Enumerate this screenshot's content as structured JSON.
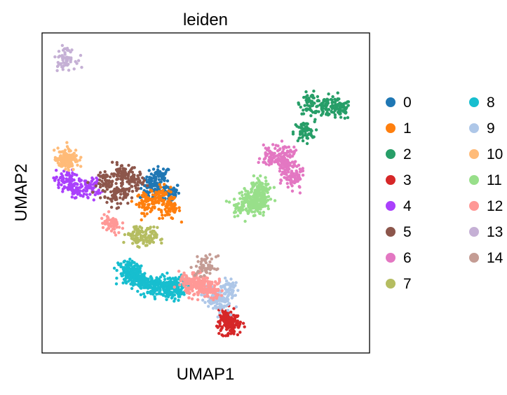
{
  "chart_data": {
    "type": "scatter",
    "title": "leiden",
    "xlabel": "UMAP1",
    "ylabel": "UMAP2",
    "xlim": [
      0,
      100
    ],
    "ylim": [
      0,
      100
    ],
    "grid": false,
    "ticks": false,
    "legend": {
      "title": "",
      "placement": "right",
      "columns": 2
    },
    "series": [
      {
        "name": "0",
        "color": "#1f77b4",
        "centers": [
          [
            36,
            55
          ],
          [
            33,
            51
          ],
          [
            39,
            50
          ]
        ]
      },
      {
        "name": "1",
        "color": "#ff7f0e",
        "centers": [
          [
            36,
            49
          ],
          [
            32,
            47
          ],
          [
            39,
            45
          ]
        ]
      },
      {
        "name": "2",
        "color": "#279e68",
        "centers": [
          [
            91,
            76
          ],
          [
            87,
            77
          ],
          [
            82,
            78
          ],
          [
            80,
            69
          ]
        ]
      },
      {
        "name": "3",
        "color": "#d62728",
        "centers": [
          [
            57,
            10
          ],
          [
            58,
            8
          ],
          [
            56,
            11
          ]
        ]
      },
      {
        "name": "4",
        "color": "#aa40fc",
        "centers": [
          [
            7,
            54
          ],
          [
            10,
            51
          ],
          [
            15,
            52
          ]
        ]
      },
      {
        "name": "5",
        "color": "#8c564b",
        "centers": [
          [
            24,
            56
          ],
          [
            20,
            53
          ],
          [
            28,
            54
          ],
          [
            23,
            49
          ]
        ]
      },
      {
        "name": "6",
        "color": "#e377c2",
        "centers": [
          [
            75,
            58
          ],
          [
            77,
            54
          ],
          [
            70,
            61
          ],
          [
            74,
            62
          ]
        ]
      },
      {
        "name": "7",
        "color": "#b5bd61",
        "centers": [
          [
            29,
            37
          ],
          [
            32,
            36
          ]
        ]
      },
      {
        "name": "8",
        "color": "#17becf",
        "centers": [
          [
            28,
            25
          ],
          [
            28,
            24
          ],
          [
            31,
            22
          ],
          [
            34,
            21
          ],
          [
            36,
            21
          ],
          [
            39,
            21
          ],
          [
            42,
            21
          ],
          [
            40,
            20
          ],
          [
            26,
            26
          ]
        ]
      },
      {
        "name": "9",
        "color": "#aec7e8",
        "centers": [
          [
            52,
            18
          ],
          [
            54,
            16
          ],
          [
            57,
            20
          ]
        ]
      },
      {
        "name": "10",
        "color": "#ffbb78",
        "centers": [
          [
            7,
            60
          ],
          [
            8,
            61
          ]
        ]
      },
      {
        "name": "11",
        "color": "#98df8a",
        "centers": [
          [
            64,
            49
          ],
          [
            67,
            48
          ],
          [
            61,
            46
          ],
          [
            65,
            46
          ],
          [
            67,
            52
          ]
        ]
      },
      {
        "name": "12",
        "color": "#ff9896",
        "centers": [
          [
            45,
            22
          ],
          [
            47,
            21
          ],
          [
            49,
            21
          ],
          [
            21,
            40
          ],
          [
            52,
            20
          ]
        ]
      },
      {
        "name": "13",
        "color": "#c5b0d5",
        "centers": [
          [
            7,
            92
          ]
        ]
      },
      {
        "name": "14",
        "color": "#c49c94",
        "centers": [
          [
            50,
            27
          ]
        ]
      }
    ]
  }
}
